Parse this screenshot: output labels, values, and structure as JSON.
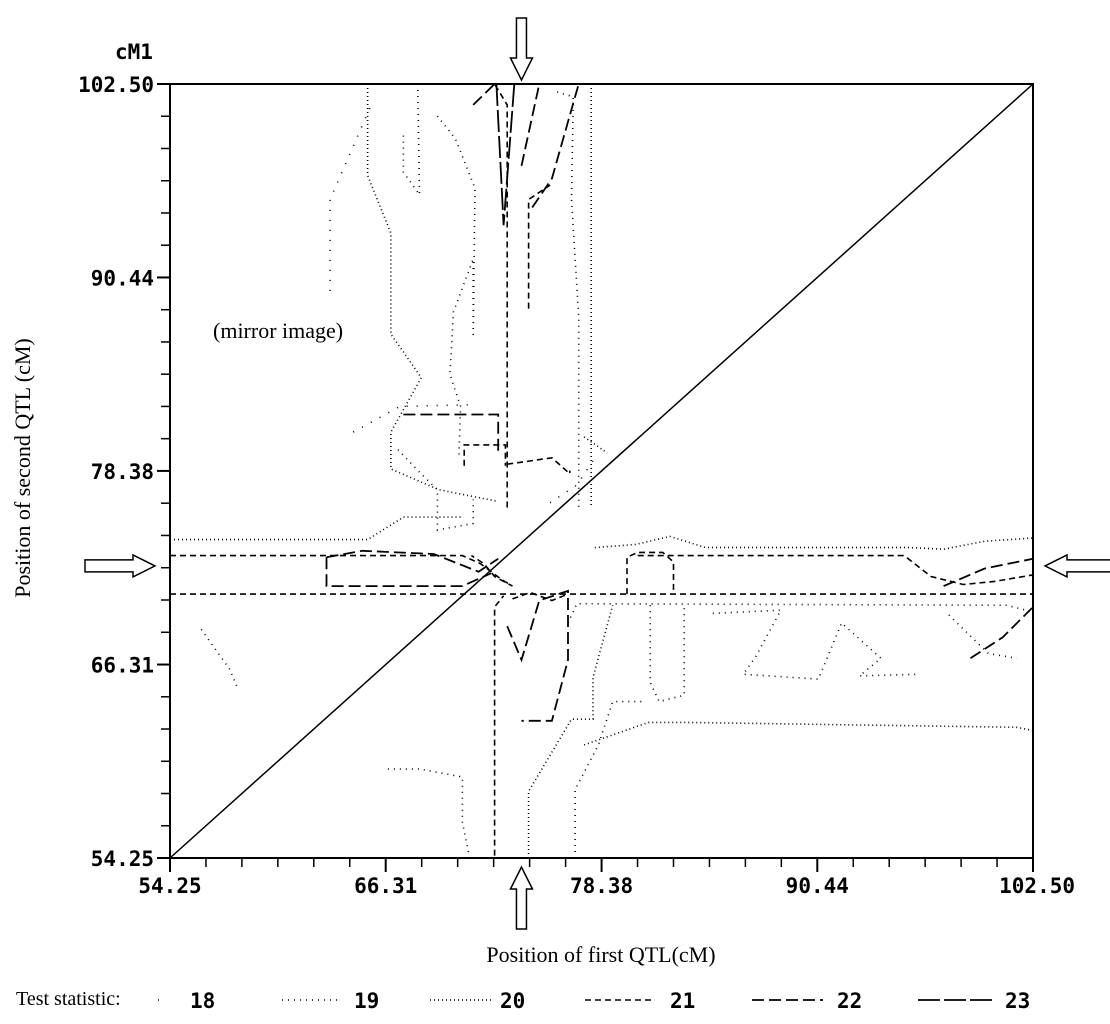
{
  "chart_data": {
    "type": "contour",
    "xlabel": "Position of first QTL(cM)",
    "ylabel": "Position of second QTL (cM)",
    "y_unit_label": "cM1",
    "xlim": [
      54.25,
      102.5
    ],
    "ylim": [
      54.25,
      102.5
    ],
    "x_ticks": [
      "54.25",
      "66.31",
      "78.38",
      "90.44",
      "102.50"
    ],
    "y_ticks": [
      "54.25",
      "66.31",
      "78.38",
      "90.44",
      "102.50"
    ],
    "x_tick_values": [
      54.25,
      66.31,
      78.38,
      90.44,
      102.5
    ],
    "y_tick_values": [
      54.25,
      66.31,
      78.38,
      90.44,
      102.5
    ],
    "annotation": "(mirror image)",
    "diagonal": true,
    "grid": false,
    "legend": {
      "title": "Test statistic:",
      "placement": "bottom",
      "levels": [
        "18",
        "19",
        "20",
        "21",
        "22",
        "23"
      ]
    },
    "peak_markers_cM": {
      "first_qtl": 73.9,
      "second_qtl": 70.9
    },
    "contours": [
      {
        "level": "21",
        "points": [
          [
            54.25,
            70.7
          ],
          [
            102.5,
            70.7
          ]
        ]
      },
      {
        "level": "21",
        "points": [
          [
            54.25,
            73.1
          ],
          [
            70.6,
            73.1
          ],
          [
            71.6,
            72.6
          ],
          [
            72.8,
            71.6
          ],
          [
            73.4,
            71.2
          ],
          [
            72.4,
            71.8
          ],
          [
            71.8,
            72.6
          ],
          [
            71.1,
            73.1
          ]
        ]
      },
      {
        "level": "21",
        "points": [
          [
            73.4,
            70.4
          ],
          [
            74.4,
            70.8
          ],
          [
            75.6,
            70.3
          ],
          [
            76.5,
            70.7
          ]
        ]
      },
      {
        "level": "21",
        "points": [
          [
            72.4,
            54.4
          ],
          [
            72.4,
            69.9
          ],
          [
            72.9,
            70.6
          ]
        ]
      },
      {
        "level": "21",
        "points": [
          [
            79.8,
            70.7
          ],
          [
            79.8,
            73.0
          ],
          [
            80.4,
            73.3
          ],
          [
            81.8,
            73.3
          ],
          [
            82.4,
            72.7
          ],
          [
            82.4,
            70.7
          ]
        ]
      },
      {
        "level": "21",
        "points": [
          [
            80.4,
            73.1
          ],
          [
            95.3,
            73.1
          ],
          [
            96.8,
            71.8
          ],
          [
            98.6,
            71.3
          ],
          [
            100.4,
            71.5
          ],
          [
            102.5,
            71.9
          ]
        ]
      },
      {
        "level": "21",
        "points": [
          [
            73.1,
            76.1
          ],
          [
            73.1,
            101.2
          ],
          [
            72.4,
            102.5
          ]
        ]
      },
      {
        "level": "21",
        "points": [
          [
            73.1,
            78.8
          ],
          [
            75.6,
            79.2
          ],
          [
            76.6,
            78.2
          ],
          [
            76.6,
            78.4
          ]
        ]
      },
      {
        "level": "21",
        "points": [
          [
            70.7,
            78.7
          ],
          [
            70.7,
            80.0
          ],
          [
            73.0,
            80.0
          ],
          [
            73.0,
            78.7
          ]
        ]
      },
      {
        "level": "21",
        "points": [
          [
            74.3,
            88.5
          ],
          [
            74.3,
            95.3
          ],
          [
            75.5,
            96.2
          ]
        ]
      },
      {
        "level": "22",
        "points": [
          [
            63.0,
            73.0
          ],
          [
            65.0,
            73.4
          ],
          [
            69.0,
            73.2
          ],
          [
            71.5,
            72.1
          ],
          [
            72.6,
            72.9
          ]
        ]
      },
      {
        "level": "22",
        "points": [
          [
            63.0,
            73.0
          ],
          [
            63.0,
            71.2
          ],
          [
            70.6,
            71.2
          ],
          [
            72.2,
            72.0
          ]
        ]
      },
      {
        "level": "22",
        "points": [
          [
            73.1,
            68.7
          ],
          [
            73.9,
            66.6
          ],
          [
            74.9,
            70.3
          ],
          [
            76.5,
            70.9
          ],
          [
            76.5,
            66.6
          ],
          [
            75.6,
            62.8
          ],
          [
            73.9,
            62.8
          ]
        ]
      },
      {
        "level": "22",
        "points": [
          [
            99.0,
            66.7
          ],
          [
            100.8,
            68.0
          ],
          [
            102.5,
            69.9
          ]
        ]
      },
      {
        "level": "22",
        "points": [
          [
            97.5,
            71.2
          ],
          [
            99.8,
            72.3
          ],
          [
            102.5,
            72.9
          ]
        ]
      },
      {
        "level": "22",
        "points": [
          [
            67.3,
            81.9
          ],
          [
            72.6,
            81.9
          ],
          [
            72.6,
            79.4
          ]
        ]
      },
      {
        "level": "22",
        "points": [
          [
            73.9,
            97.4
          ],
          [
            74.9,
            102.5
          ]
        ]
      },
      {
        "level": "22",
        "points": [
          [
            74.5,
            94.8
          ],
          [
            75.6,
            96.6
          ],
          [
            77.1,
            102.5
          ]
        ]
      },
      {
        "level": "22",
        "points": [
          [
            71.2,
            101.2
          ],
          [
            72.4,
            102.5
          ]
        ]
      },
      {
        "level": "23",
        "points": [
          [
            72.5,
            102.5
          ],
          [
            72.9,
            93.7
          ],
          [
            73.5,
            102.5
          ]
        ]
      },
      {
        "level": "19",
        "points": [
          [
            56.0,
            68.5
          ],
          [
            57.6,
            66.0
          ],
          [
            58.0,
            64.9
          ]
        ]
      },
      {
        "level": "19",
        "points": [
          [
            71.0,
            54.25
          ],
          [
            70.6,
            56.5
          ],
          [
            70.6,
            59.3
          ],
          [
            68.2,
            59.8
          ],
          [
            66.3,
            59.8
          ]
        ]
      },
      {
        "level": "19",
        "points": [
          [
            76.9,
            54.25
          ],
          [
            76.9,
            58.5
          ],
          [
            78.2,
            61.3
          ],
          [
            79.0,
            64.0
          ],
          [
            80.7,
            64.0
          ]
        ]
      },
      {
        "level": "19",
        "points": [
          [
            76.5,
            68.9
          ],
          [
            77.0,
            70.1
          ],
          [
            101.0,
            70.0
          ],
          [
            102.5,
            69.6
          ]
        ]
      },
      {
        "level": "19",
        "points": [
          [
            81.1,
            70.0
          ],
          [
            81.1,
            65.2
          ],
          [
            81.6,
            64.0
          ],
          [
            83.0,
            64.4
          ],
          [
            83.0,
            70.0
          ]
        ]
      },
      {
        "level": "19",
        "points": [
          [
            84.6,
            69.5
          ],
          [
            88.4,
            69.7
          ],
          [
            87.0,
            66.8
          ],
          [
            86.3,
            65.7
          ],
          [
            90.5,
            65.4
          ],
          [
            91.8,
            68.9
          ],
          [
            94.0,
            66.7
          ],
          [
            92.8,
            65.6
          ],
          [
            96.0,
            65.7
          ]
        ]
      },
      {
        "level": "19",
        "points": [
          [
            97.8,
            69.4
          ],
          [
            100.0,
            67.0
          ],
          [
            101.6,
            66.7
          ]
        ]
      },
      {
        "level": "19",
        "points": [
          [
            68.1,
            102.5
          ],
          [
            68.2,
            95.6
          ],
          [
            67.3,
            97.0
          ],
          [
            67.3,
            99.5
          ]
        ]
      },
      {
        "level": "19",
        "points": [
          [
            69.2,
            100.5
          ],
          [
            70.2,
            99.1
          ],
          [
            71.3,
            96.0
          ],
          [
            71.2,
            86.7
          ],
          [
            71.2,
            91.6
          ],
          [
            70.1,
            88.3
          ],
          [
            69.9,
            84.4
          ],
          [
            70.5,
            82.4
          ],
          [
            70.4,
            79.3
          ]
        ]
      },
      {
        "level": "19",
        "points": [
          [
            67.0,
            79.7
          ],
          [
            68.2,
            78.3
          ],
          [
            69.2,
            77.2
          ],
          [
            69.2,
            74.7
          ],
          [
            71.2,
            75.1
          ],
          [
            71.2,
            76.6
          ]
        ]
      },
      {
        "level": "19",
        "points": [
          [
            75.9,
            102.0
          ],
          [
            76.8,
            101.7
          ],
          [
            76.7,
            95.3
          ],
          [
            77.1,
            88.0
          ],
          [
            77.1,
            76.1
          ]
        ]
      },
      {
        "level": "20",
        "points": [
          [
            54.25,
            74.1
          ],
          [
            65.3,
            74.1
          ],
          [
            67.3,
            75.5
          ],
          [
            70.5,
            75.5
          ]
        ]
      },
      {
        "level": "20",
        "points": [
          [
            78.0,
            73.6
          ],
          [
            80.3,
            73.8
          ],
          [
            82.2,
            74.3
          ],
          [
            84.2,
            73.6
          ],
          [
            95.7,
            73.6
          ],
          [
            97.5,
            73.5
          ],
          [
            99.8,
            74.0
          ],
          [
            102.5,
            74.2
          ]
        ]
      },
      {
        "level": "20",
        "points": [
          [
            74.3,
            54.25
          ],
          [
            74.3,
            58.4
          ],
          [
            76.7,
            62.9
          ],
          [
            77.9,
            62.9
          ],
          [
            77.9,
            65.5
          ],
          [
            79.0,
            70.0
          ]
        ]
      },
      {
        "level": "20",
        "points": [
          [
            77.4,
            61.3
          ],
          [
            81.0,
            62.7
          ],
          [
            83.0,
            62.7
          ],
          [
            101.6,
            62.4
          ],
          [
            102.5,
            62.2
          ]
        ]
      },
      {
        "level": "20",
        "points": [
          [
            65.3,
            102.5
          ],
          [
            65.3,
            96.8
          ],
          [
            66.6,
            93.2
          ],
          [
            66.6,
            86.9
          ],
          [
            68.3,
            84.2
          ],
          [
            66.6,
            80.8
          ],
          [
            66.6,
            78.5
          ],
          [
            69.3,
            77.2
          ],
          [
            72.5,
            76.5
          ]
        ]
      },
      {
        "level": "20",
        "points": [
          [
            77.8,
            102.5
          ],
          [
            77.8,
            76.1
          ]
        ]
      },
      {
        "level": "20",
        "points": [
          [
            77.4,
            80.5
          ],
          [
            78.7,
            79.5
          ]
        ]
      },
      {
        "level": "18",
        "points": [
          [
            64.5,
            80.8
          ],
          [
            67.1,
            82.4
          ],
          [
            71.0,
            82.5
          ]
        ]
      },
      {
        "level": "18",
        "points": [
          [
            63.2,
            89.6
          ],
          [
            63.2,
            95.3
          ],
          [
            65.5,
            101.2
          ]
        ]
      },
      {
        "level": "18",
        "points": [
          [
            75.5,
            76.4
          ],
          [
            77.0,
            77.5
          ],
          [
            78.0,
            79.2
          ]
        ]
      }
    ]
  }
}
